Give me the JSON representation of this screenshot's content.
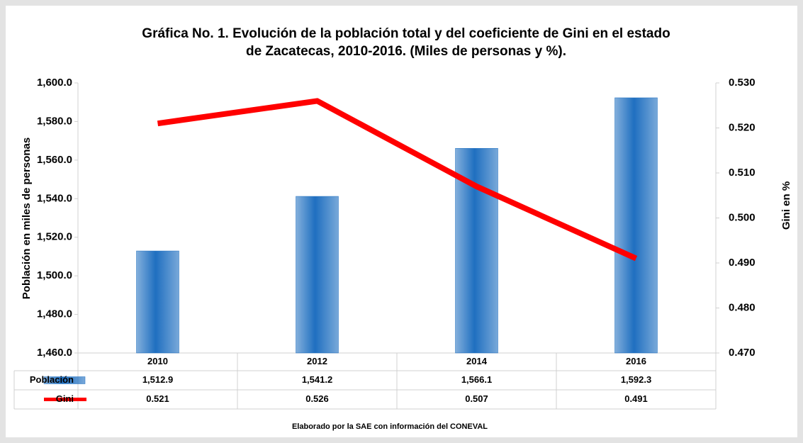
{
  "chart_data": {
    "type": "bar",
    "title": [
      "Gráfica No. 1. Evolución de la población total y del coeficiente de Gini en el estado",
      "de Zacatecas, 2010-2016. (Miles de personas y %)."
    ],
    "ylabel": "Población en miles de personas",
    "y2label": "Gini en %",
    "note": "Elaborado por la SAE con información del CONEVAL",
    "categories": [
      "2010",
      "2012",
      "2014",
      "2016"
    ],
    "series": [
      {
        "name": "Población",
        "type": "bar",
        "color": "#1f6fc0",
        "values": [
          1512.9,
          1541.2,
          1566.1,
          1592.3
        ],
        "value_labels": [
          "1,512.9",
          "1,541.2",
          "1,566.1",
          "1,592.3"
        ]
      },
      {
        "name": "Gini",
        "type": "line",
        "axis": "y2",
        "color": "#ff0000",
        "values": [
          0.521,
          0.526,
          0.507,
          0.491
        ]
      }
    ],
    "ylim": [
      1460,
      1600
    ],
    "yticks": [
      {
        "value": 1460,
        "label": "1,460.0"
      },
      {
        "value": 1480,
        "label": "1,480.0"
      },
      {
        "value": 1500,
        "label": "1,500.0"
      },
      {
        "value": 1520,
        "label": "1,520.0"
      },
      {
        "value": 1540,
        "label": "1,540.0"
      },
      {
        "value": 1560,
        "label": "1,560.0"
      },
      {
        "value": 1580,
        "label": "1,580.0"
      },
      {
        "value": 1600,
        "label": "1,600.0"
      }
    ],
    "y2lim": [
      0.47,
      0.53
    ],
    "y2ticks": [
      {
        "value": 0.47,
        "label": "0.470"
      },
      {
        "value": 0.48,
        "label": "0.480"
      },
      {
        "value": 0.49,
        "label": "0.490"
      },
      {
        "value": 0.5,
        "label": "0.500"
      },
      {
        "value": 0.51,
        "label": "0.510"
      },
      {
        "value": 0.52,
        "label": "0.520"
      },
      {
        "value": 0.53,
        "label": "0.530"
      }
    ],
    "grid": false
  }
}
